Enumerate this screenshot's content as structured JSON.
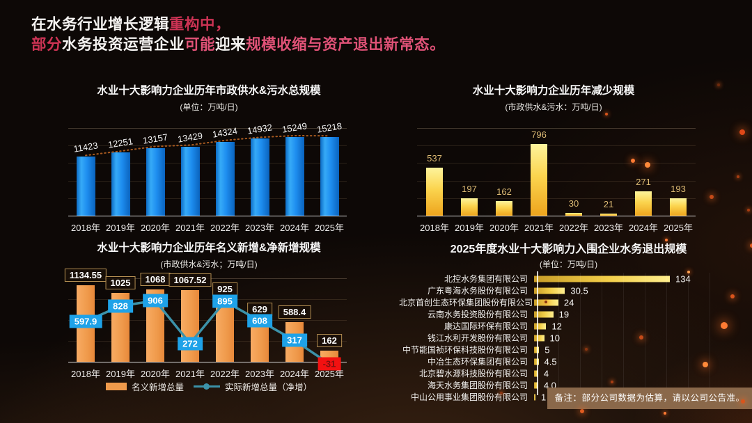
{
  "header": {
    "line1": [
      {
        "text": "在水务行业增长逻辑",
        "tone": "white"
      },
      {
        "text": "重构中，",
        "tone": "red"
      }
    ],
    "line2": [
      {
        "text": "部分",
        "tone": "red"
      },
      {
        "text": "水务投资运营企业",
        "tone": "white"
      },
      {
        "text": "可能",
        "tone": "pink"
      },
      {
        "text": "迎来",
        "tone": "white"
      },
      {
        "text": "规模收缩与资产退出新常态。",
        "tone": "pink"
      }
    ]
  },
  "colors": {
    "accent_red": "#cc3354",
    "accent_pink": "#e05277",
    "bar_blue": "#1e8ef0",
    "bar_gold": "#f5c63a",
    "bar_orange": "#ef9a4b",
    "line_teal": "#3c92a9",
    "marker_blue": "#1ea2e8",
    "marker_red": "#f31111",
    "gold_value_text": "#dcba74",
    "note_bg": "#8a684a"
  },
  "chart_data": [
    {
      "type": "bar",
      "title": "水业十大影响力企业历年市政供水&污水总规模",
      "subtitle": "(单位：万吨/日)",
      "categories": [
        "2018年",
        "2019年",
        "2020年",
        "2021年",
        "2022年",
        "2023年",
        "2024年",
        "2025年"
      ],
      "values": [
        11423,
        12251,
        13157,
        13429,
        14324,
        14932,
        15249,
        15218
      ],
      "labels": [
        "11423",
        "12251",
        "13157",
        "13429",
        "14324",
        "14932",
        "15249",
        "15218"
      ],
      "ylim": [
        0,
        16000
      ],
      "grid": true,
      "trendline": true,
      "bar_color": "#1e8ef0"
    },
    {
      "type": "bar",
      "title": "水业十大影响力企业历年减少规模",
      "subtitle": "(市政供水&污水：万吨/日)",
      "categories": [
        "2018年",
        "2019年",
        "2020年",
        "2021年",
        "2022年",
        "2023年",
        "2024年",
        "2025年"
      ],
      "values": [
        537,
        197,
        162,
        796,
        30,
        21,
        271,
        193
      ],
      "labels": [
        "537",
        "197",
        "162",
        "796",
        "30",
        "21",
        "271",
        "193"
      ],
      "ylim": [
        0,
        1000
      ],
      "grid": true,
      "bar_color": "#f5c63a"
    },
    {
      "type": "bar+line",
      "title": "水业十大影响力企业历年名义新增&净新增规模",
      "subtitle": "(市政供水&污水；万吨/日)",
      "categories": [
        "2018年",
        "2019年",
        "2020年",
        "2021年",
        "2022年",
        "2023年",
        "2024年",
        "2025年"
      ],
      "series": [
        {
          "name": "名义新增总量",
          "type": "bar",
          "values": [
            1134.55,
            1025,
            1068,
            1067.52,
            925,
            629,
            588.4,
            162
          ],
          "labels": [
            "1134.55",
            "1025",
            "1068",
            "1067.52",
            "925",
            "629",
            "588.4",
            "162"
          ]
        },
        {
          "name": "实际新增总量（净增）",
          "type": "line",
          "values": [
            597.9,
            828,
            906,
            272,
            895,
            608,
            317,
            -31
          ],
          "labels": [
            "597.9",
            "828",
            "906",
            "272",
            "895",
            "608",
            "317",
            "-31"
          ],
          "alert_index": 7
        }
      ],
      "ylim": [
        -100,
        1250
      ],
      "grid": true,
      "legend_position": "bottom"
    },
    {
      "type": "bar-horizontal",
      "title": "2025年度水业十大影响力入围企业水务退出规模",
      "subtitle": "(单位：万吨/日)",
      "categories": [
        "北控水务集团有限公司",
        "广东粤海水务股份有限公司",
        "北京首创生态环保集团股份有限公司",
        "云南水务投资股份有限公司",
        "康达国际环保有限公司",
        "钱江水利开发股份有限公司",
        "中节能国祯环保科技股份有限公司",
        "中冶生态环保集团有限公司",
        "北京碧水源科技股份有限公司",
        "海天水务集团股份有限公司",
        "中山公用事业集团股份有限公司"
      ],
      "values": [
        134,
        30.5,
        24,
        19,
        12,
        10,
        5,
        4.5,
        4,
        4.0,
        1
      ],
      "labels": [
        "134",
        "30.5",
        "24",
        "19",
        "12",
        "10",
        "5",
        "4.5",
        "4",
        "4.0",
        "1"
      ],
      "xlim": [
        0,
        150
      ],
      "grid": true
    }
  ],
  "note": "备注：部分公司数据为估算，请以公司公告准。"
}
